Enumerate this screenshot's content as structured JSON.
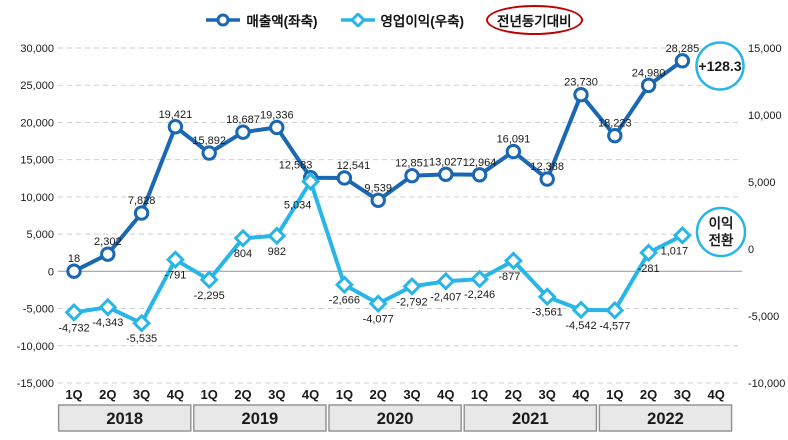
{
  "chart_data": {
    "type": "line",
    "title": "",
    "legend_position": "top",
    "grid": "horizontal-dashed",
    "dual_axis": true,
    "quarters": [
      "1Q",
      "2Q",
      "3Q",
      "4Q",
      "1Q",
      "2Q",
      "3Q",
      "4Q",
      "1Q",
      "2Q",
      "3Q",
      "4Q",
      "1Q",
      "2Q",
      "3Q",
      "4Q",
      "1Q",
      "2Q",
      "3Q",
      "4Q"
    ],
    "years": [
      "2018",
      "2019",
      "2020",
      "2021",
      "2022"
    ],
    "left_axis": {
      "min": -15000,
      "max": 30000,
      "step": 5000
    },
    "right_axis": {
      "min": -10000,
      "max": 15000,
      "step": 5000
    },
    "series": [
      {
        "name": "매출액(좌축)",
        "axis": "left",
        "marker": "circle",
        "color": "#1a67b3",
        "values": [
          18,
          2302,
          7828,
          19421,
          15892,
          18687,
          19336,
          12583,
          12541,
          9539,
          12851,
          13027,
          12964,
          16091,
          12388,
          23730,
          18223,
          24980,
          28285,
          null
        ]
      },
      {
        "name": "영업이익(우축)",
        "axis": "right",
        "marker": "diamond",
        "color": "#29b5e8",
        "values": [
          -4732,
          -4343,
          -5535,
          -791,
          -2295,
          804,
          982,
          5034,
          -2666,
          -4077,
          -2792,
          -2407,
          -2246,
          -877,
          -3561,
          -4542,
          -4577,
          -281,
          1017,
          null
        ]
      }
    ],
    "annotations": [
      {
        "id": "yoy-growth-badge",
        "text": "+128.3",
        "shape": "circle",
        "stroke": "#29b5e8"
      },
      {
        "id": "profit-turnaround-badge",
        "lines": [
          "이익",
          "전환"
        ],
        "shape": "circle",
        "stroke": "#29b5e8"
      }
    ]
  },
  "legend": {
    "items": [
      {
        "label": "매출액(좌축)",
        "marker": "circle"
      },
      {
        "label": "영업이익(우축)",
        "marker": "diamond"
      }
    ],
    "highlight_label": "전년동기대비",
    "highlight_color": "#c00000"
  },
  "colors": {
    "revenue": "#1a67b3",
    "profit": "#29b5e8",
    "grid": "#cfcfcf",
    "zero_line": "#a0a0a0",
    "year_box_fill": "#e8e8e8",
    "year_box_border": "#8f8f8f",
    "text": "#1a1a1a",
    "highlight_red": "#c00000"
  }
}
